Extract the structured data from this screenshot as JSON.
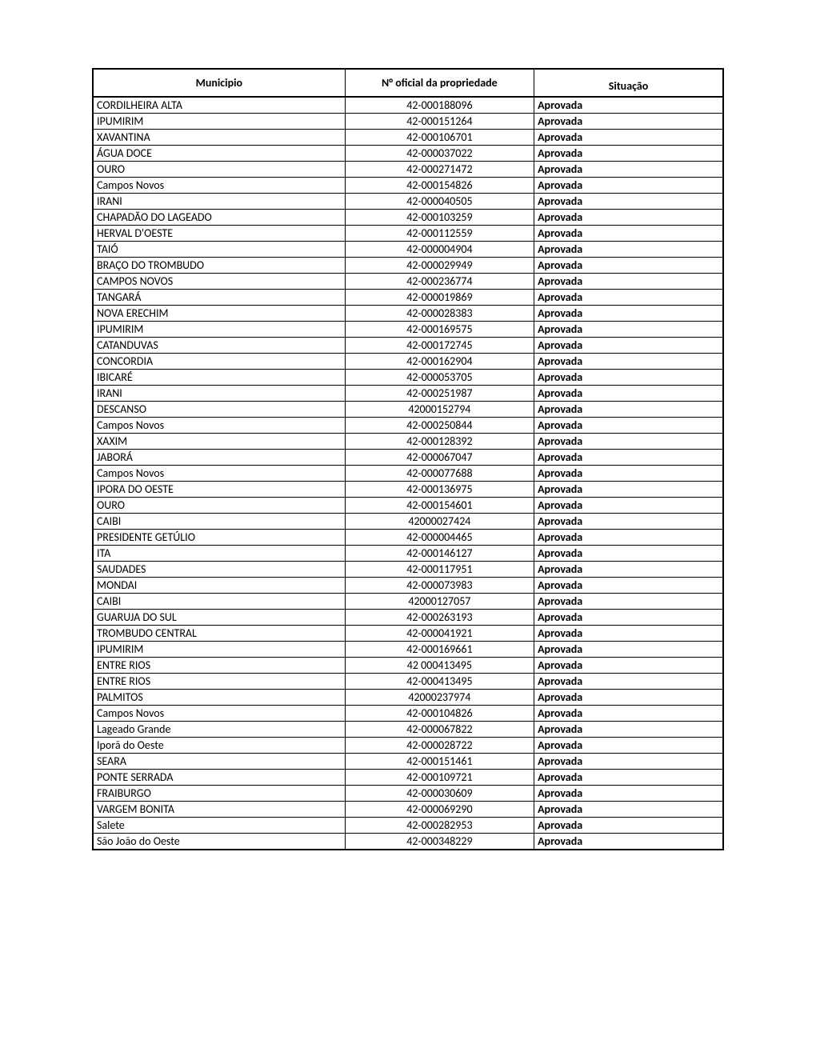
{
  "table": {
    "headers": {
      "municipio": "Municipio",
      "numero": "N° oficial da propriedade",
      "situacao": "Situação"
    },
    "rows": [
      {
        "municipio": "CORDILHEIRA ALTA",
        "numero": "42-000188096",
        "situacao": "Aprovada"
      },
      {
        "municipio": "IPUMIRIM",
        "numero": "42-000151264",
        "situacao": "Aprovada"
      },
      {
        "municipio": "XAVANTINA",
        "numero": "42-000106701",
        "situacao": "Aprovada"
      },
      {
        "municipio": "ÁGUA DOCE",
        "numero": "42-000037022",
        "situacao": "Aprovada"
      },
      {
        "municipio": "OURO",
        "numero": "42-000271472",
        "situacao": "Aprovada"
      },
      {
        "municipio": "Campos Novos",
        "numero": "42-000154826",
        "situacao": "Aprovada"
      },
      {
        "municipio": "IRANI",
        "numero": "42-000040505",
        "situacao": "Aprovada"
      },
      {
        "municipio": "CHAPADÃO DO LAGEADO",
        "numero": "42-000103259",
        "situacao": "Aprovada"
      },
      {
        "municipio": "HERVAL D'OESTE",
        "numero": "42-000112559",
        "situacao": "Aprovada"
      },
      {
        "municipio": "TAIÓ",
        "numero": "42-000004904",
        "situacao": "Aprovada"
      },
      {
        "municipio": "BRAÇO DO TROMBUDO",
        "numero": "42-000029949",
        "situacao": "Aprovada"
      },
      {
        "municipio": "CAMPOS NOVOS",
        "numero": "42-000236774",
        "situacao": "Aprovada"
      },
      {
        "municipio": "TANGARÁ",
        "numero": "42-000019869",
        "situacao": "Aprovada"
      },
      {
        "municipio": "NOVA ERECHIM",
        "numero": "42-000028383",
        "situacao": "Aprovada"
      },
      {
        "municipio": "IPUMIRIM",
        "numero": "42-000169575",
        "situacao": "Aprovada"
      },
      {
        "municipio": "CATANDUVAS",
        "numero": "42-000172745",
        "situacao": "Aprovada"
      },
      {
        "municipio": "CONCORDIA",
        "numero": "42-000162904",
        "situacao": "Aprovada"
      },
      {
        "municipio": "IBICARÉ",
        "numero": "42-000053705",
        "situacao": "Aprovada"
      },
      {
        "municipio": "IRANI",
        "numero": "42-000251987",
        "situacao": "Aprovada"
      },
      {
        "municipio": "DESCANSO",
        "numero": "42000152794",
        "situacao": "Aprovada"
      },
      {
        "municipio": "Campos Novos",
        "numero": "42-000250844",
        "situacao": "Aprovada"
      },
      {
        "municipio": "XAXIM",
        "numero": "42-000128392",
        "situacao": "Aprovada"
      },
      {
        "municipio": "JABORÁ",
        "numero": "42-000067047",
        "situacao": "Aprovada"
      },
      {
        "municipio": "Campos Novos",
        "numero": "42-000077688",
        "situacao": "Aprovada"
      },
      {
        "municipio": "IPORA DO OESTE",
        "numero": "42-000136975",
        "situacao": "Aprovada"
      },
      {
        "municipio": "OURO",
        "numero": "42-000154601",
        "situacao": "Aprovada"
      },
      {
        "municipio": "CAIBI",
        "numero": "42000027424",
        "situacao": "Aprovada"
      },
      {
        "municipio": "PRESIDENTE GETÚLIO",
        "numero": "42-000004465",
        "situacao": "Aprovada"
      },
      {
        "municipio": "ITA",
        "numero": "42-000146127",
        "situacao": "Aprovada"
      },
      {
        "municipio": "SAUDADES",
        "numero": "42-000117951",
        "situacao": "Aprovada"
      },
      {
        "municipio": "MONDAI",
        "numero": "42-000073983",
        "situacao": "Aprovada"
      },
      {
        "municipio": "CAIBI",
        "numero": "42000127057",
        "situacao": "Aprovada"
      },
      {
        "municipio": "GUARUJA DO SUL",
        "numero": "42-000263193",
        "situacao": "Aprovada"
      },
      {
        "municipio": "TROMBUDO CENTRAL",
        "numero": "42-000041921",
        "situacao": "Aprovada"
      },
      {
        "municipio": "IPUMIRIM",
        "numero": "42-000169661",
        "situacao": "Aprovada"
      },
      {
        "municipio": "ENTRE RIOS",
        "numero": "42 000413495",
        "situacao": "Aprovada"
      },
      {
        "municipio": "ENTRE RIOS",
        "numero": "42-000413495",
        "situacao": "Aprovada"
      },
      {
        "municipio": "PALMITOS",
        "numero": "42000237974",
        "situacao": "Aprovada"
      },
      {
        "municipio": "Campos Novos",
        "numero": "42-000104826",
        "situacao": "Aprovada"
      },
      {
        "municipio": "Lageado Grande",
        "numero": "42-000067822",
        "situacao": "Aprovada"
      },
      {
        "municipio": "Iporã do Oeste",
        "numero": "42-000028722",
        "situacao": "Aprovada"
      },
      {
        "municipio": "SEARA",
        "numero": "42-000151461",
        "situacao": "Aprovada"
      },
      {
        "municipio": "PONTE SERRADA",
        "numero": "42-000109721",
        "situacao": "Aprovada"
      },
      {
        "municipio": "FRAIBURGO",
        "numero": "42-000030609",
        "situacao": "Aprovada"
      },
      {
        "municipio": "VARGEM BONITA",
        "numero": "42-000069290",
        "situacao": "Aprovada"
      },
      {
        "municipio": "Salete",
        "numero": "42-000282953",
        "situacao": "Aprovada"
      },
      {
        "municipio": "São João do Oeste",
        "numero": "42-000348229",
        "situacao": "Aprovada"
      }
    ]
  }
}
